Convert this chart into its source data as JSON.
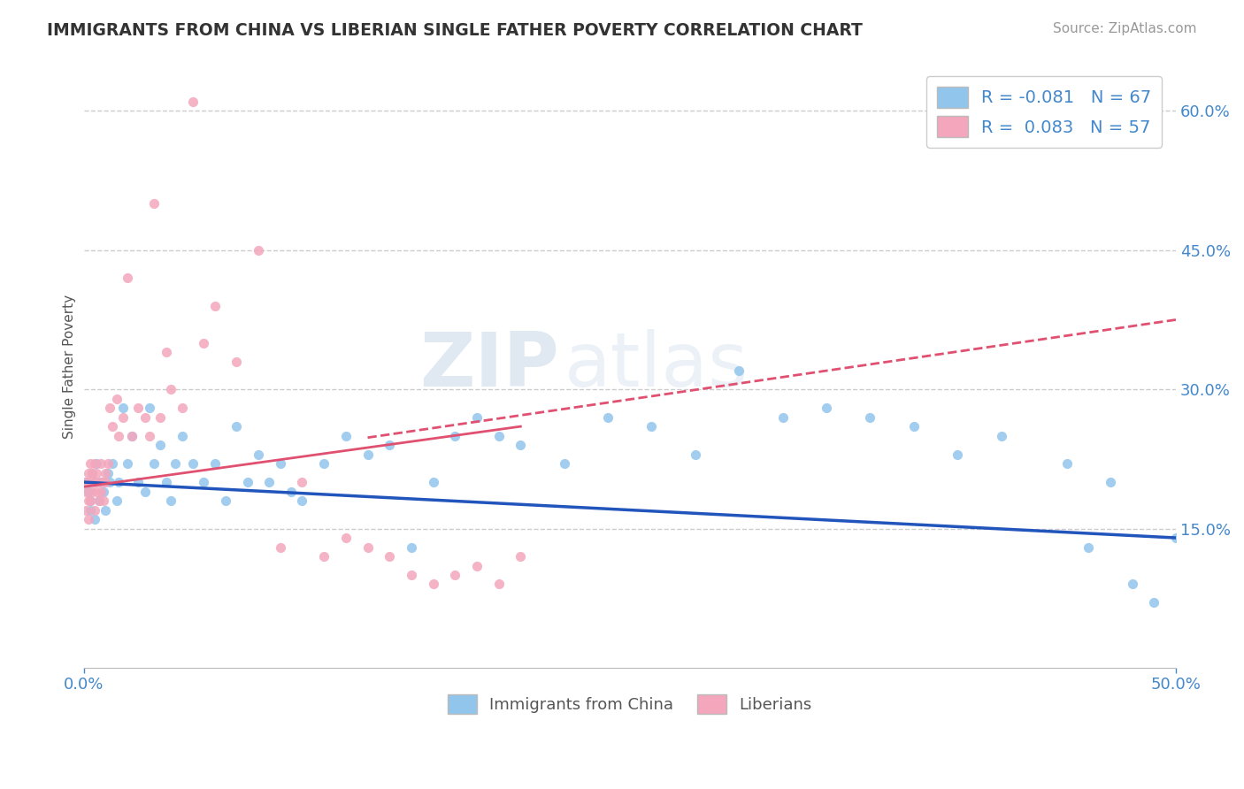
{
  "title": "IMMIGRANTS FROM CHINA VS LIBERIAN SINGLE FATHER POVERTY CORRELATION CHART",
  "source": "Source: ZipAtlas.com",
  "ylabel_left": "Single Father Poverty",
  "legend_label_1": "Immigrants from China",
  "legend_label_2": "Liberians",
  "r1": -0.081,
  "n1": 67,
  "r2": 0.083,
  "n2": 57,
  "xlim": [
    0.0,
    0.5
  ],
  "ylim": [
    0.0,
    0.65
  ],
  "yticks_right": [
    0.15,
    0.3,
    0.45,
    0.6
  ],
  "ytick_labels_right": [
    "15.0%",
    "30.0%",
    "45.0%",
    "60.0%"
  ],
  "xticks": [
    0.0,
    0.5
  ],
  "xtick_labels": [
    "0.0%",
    "50.0%"
  ],
  "grid_color": "#cccccc",
  "color_blue": "#92C5EC",
  "color_pink": "#F4A7BC",
  "trendline_blue": "#2255BB",
  "trendline_pink": "#E05070",
  "axis_label_color": "#4488CC",
  "watermark_zip": "ZIP",
  "watermark_atlas": "atlas",
  "background_color": "#ffffff",
  "blue_scatter_x": [
    0.001,
    0.002,
    0.003,
    0.003,
    0.004,
    0.005,
    0.005,
    0.006,
    0.007,
    0.008,
    0.009,
    0.01,
    0.011,
    0.012,
    0.013,
    0.015,
    0.016,
    0.018,
    0.02,
    0.022,
    0.025,
    0.028,
    0.03,
    0.032,
    0.035,
    0.038,
    0.04,
    0.042,
    0.045,
    0.05,
    0.055,
    0.06,
    0.065,
    0.07,
    0.075,
    0.08,
    0.085,
    0.09,
    0.095,
    0.1,
    0.11,
    0.12,
    0.13,
    0.14,
    0.15,
    0.16,
    0.17,
    0.18,
    0.19,
    0.2,
    0.22,
    0.24,
    0.26,
    0.28,
    0.3,
    0.32,
    0.34,
    0.36,
    0.38,
    0.4,
    0.42,
    0.45,
    0.46,
    0.47,
    0.48,
    0.49,
    0.5
  ],
  "blue_scatter_y": [
    0.2,
    0.19,
    0.18,
    0.17,
    0.21,
    0.16,
    0.2,
    0.22,
    0.18,
    0.2,
    0.19,
    0.17,
    0.21,
    0.2,
    0.22,
    0.18,
    0.2,
    0.28,
    0.22,
    0.25,
    0.2,
    0.19,
    0.28,
    0.22,
    0.24,
    0.2,
    0.18,
    0.22,
    0.25,
    0.22,
    0.2,
    0.22,
    0.18,
    0.26,
    0.2,
    0.23,
    0.2,
    0.22,
    0.19,
    0.18,
    0.22,
    0.25,
    0.23,
    0.24,
    0.13,
    0.2,
    0.25,
    0.27,
    0.25,
    0.24,
    0.22,
    0.27,
    0.26,
    0.23,
    0.32,
    0.27,
    0.28,
    0.27,
    0.26,
    0.23,
    0.25,
    0.22,
    0.13,
    0.2,
    0.09,
    0.07,
    0.14
  ],
  "pink_scatter_x": [
    0.001,
    0.001,
    0.001,
    0.002,
    0.002,
    0.002,
    0.003,
    0.003,
    0.003,
    0.004,
    0.004,
    0.005,
    0.005,
    0.005,
    0.006,
    0.006,
    0.007,
    0.007,
    0.008,
    0.008,
    0.009,
    0.009,
    0.01,
    0.01,
    0.011,
    0.012,
    0.013,
    0.015,
    0.016,
    0.018,
    0.02,
    0.022,
    0.025,
    0.028,
    0.03,
    0.032,
    0.035,
    0.038,
    0.04,
    0.045,
    0.05,
    0.055,
    0.06,
    0.07,
    0.08,
    0.09,
    0.1,
    0.11,
    0.12,
    0.13,
    0.14,
    0.15,
    0.16,
    0.17,
    0.18,
    0.19,
    0.2
  ],
  "pink_scatter_y": [
    0.2,
    0.19,
    0.17,
    0.21,
    0.18,
    0.16,
    0.22,
    0.2,
    0.18,
    0.19,
    0.21,
    0.2,
    0.22,
    0.17,
    0.21,
    0.19,
    0.18,
    0.2,
    0.22,
    0.19,
    0.2,
    0.18,
    0.21,
    0.2,
    0.22,
    0.28,
    0.26,
    0.29,
    0.25,
    0.27,
    0.42,
    0.25,
    0.28,
    0.27,
    0.25,
    0.5,
    0.27,
    0.34,
    0.3,
    0.28,
    0.61,
    0.35,
    0.39,
    0.33,
    0.45,
    0.13,
    0.2,
    0.12,
    0.14,
    0.13,
    0.12,
    0.1,
    0.09,
    0.1,
    0.11,
    0.09,
    0.12
  ]
}
